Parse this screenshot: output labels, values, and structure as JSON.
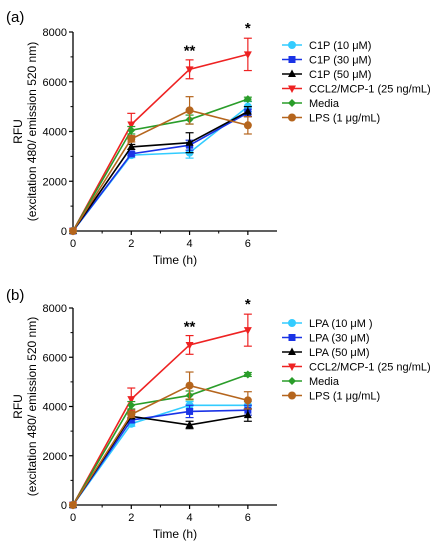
{
  "chart_data": [
    {
      "panel_label": "(a)",
      "type": "line",
      "xlabel": "Time (h)",
      "ylabel_line1": "RFU",
      "ylabel_line2": "(excitation 480/ emission 520 nm)",
      "xlim": [
        0,
        7
      ],
      "ylim": [
        0,
        8000
      ],
      "xticks": [
        "0",
        "2",
        "4",
        "6"
      ],
      "yticks": [
        "0",
        "2000",
        "4000",
        "6000",
        "8000"
      ],
      "legend_position": "right",
      "x": [
        0,
        2,
        4,
        6
      ],
      "annotations": [
        {
          "text": "**",
          "x": 4,
          "y": 7050
        },
        {
          "text": "*",
          "x": 6,
          "y": 7950
        }
      ],
      "series": [
        {
          "name": "C1P (10 μM)",
          "color": "#33ccff",
          "marker": "circle",
          "values": [
            0,
            3050,
            3150,
            5000
          ],
          "errors": [
            0,
            100,
            220,
            200
          ]
        },
        {
          "name": "C1P (30 μM)",
          "color": "#1a33e6",
          "marker": "square",
          "values": [
            0,
            3100,
            3450,
            4750
          ],
          "errors": [
            0,
            80,
            200,
            150
          ]
        },
        {
          "name": "C1P (50 μM)",
          "color": "#000000",
          "marker": "triangle-up",
          "values": [
            0,
            3380,
            3550,
            4800
          ],
          "errors": [
            0,
            100,
            400,
            200
          ]
        },
        {
          "name": "CCL2/MCP-1 (25 ng/mL)",
          "color": "#ee2222",
          "marker": "triangle-down",
          "values": [
            0,
            4280,
            6500,
            7100
          ],
          "errors": [
            0,
            450,
            380,
            650
          ]
        },
        {
          "name": "Media",
          "color": "#2a9d2a",
          "marker": "diamond",
          "values": [
            0,
            4050,
            4480,
            5300
          ],
          "errors": [
            0,
            150,
            180,
            80
          ]
        },
        {
          "name": "LPS (1 μg/mL)",
          "color": "#b5651d",
          "marker": "circle",
          "values": [
            0,
            3700,
            4850,
            4250
          ],
          "errors": [
            0,
            120,
            550,
            350
          ]
        }
      ]
    },
    {
      "panel_label": "(b)",
      "type": "line",
      "xlabel": "Time (h)",
      "ylabel_line1": "RFU",
      "ylabel_line2": "(excitation 480/ emission 520 nm)",
      "xlim": [
        0,
        7
      ],
      "ylim": [
        0,
        8000
      ],
      "xticks": [
        "0",
        "2",
        "4",
        "6"
      ],
      "yticks": [
        "0",
        "2000",
        "4000",
        "6000",
        "8000"
      ],
      "legend_position": "right",
      "x": [
        0,
        2,
        4,
        6
      ],
      "annotations": [
        {
          "text": "**",
          "x": 4,
          "y": 7050
        },
        {
          "text": "*",
          "x": 6,
          "y": 7950
        }
      ],
      "series": [
        {
          "name": "LPA (10 μM )",
          "color": "#33ccff",
          "marker": "circle",
          "values": [
            0,
            3300,
            4050,
            4050
          ],
          "errors": [
            0,
            100,
            150,
            150
          ]
        },
        {
          "name": "LPA (30 μM)",
          "color": "#1a33e6",
          "marker": "square",
          "values": [
            0,
            3450,
            3800,
            3850
          ],
          "errors": [
            0,
            100,
            250,
            200
          ]
        },
        {
          "name": "LPA (50 μM)",
          "color": "#000000",
          "marker": "triangle-up",
          "values": [
            0,
            3600,
            3250,
            3650
          ],
          "errors": [
            0,
            100,
            150,
            250
          ]
        },
        {
          "name": "CCL2/MCP-1 (25 ng/mL)",
          "color": "#ee2222",
          "marker": "triangle-down",
          "values": [
            0,
            4300,
            6500,
            7100
          ],
          "errors": [
            0,
            450,
            380,
            650
          ]
        },
        {
          "name": "Media",
          "color": "#2a9d2a",
          "marker": "diamond",
          "values": [
            0,
            4050,
            4450,
            5300
          ],
          "errors": [
            0,
            150,
            180,
            80
          ]
        },
        {
          "name": "LPS (1 μg/mL)",
          "color": "#b5651d",
          "marker": "circle",
          "values": [
            0,
            3680,
            4850,
            4250
          ],
          "errors": [
            0,
            120,
            550,
            350
          ]
        }
      ]
    }
  ]
}
